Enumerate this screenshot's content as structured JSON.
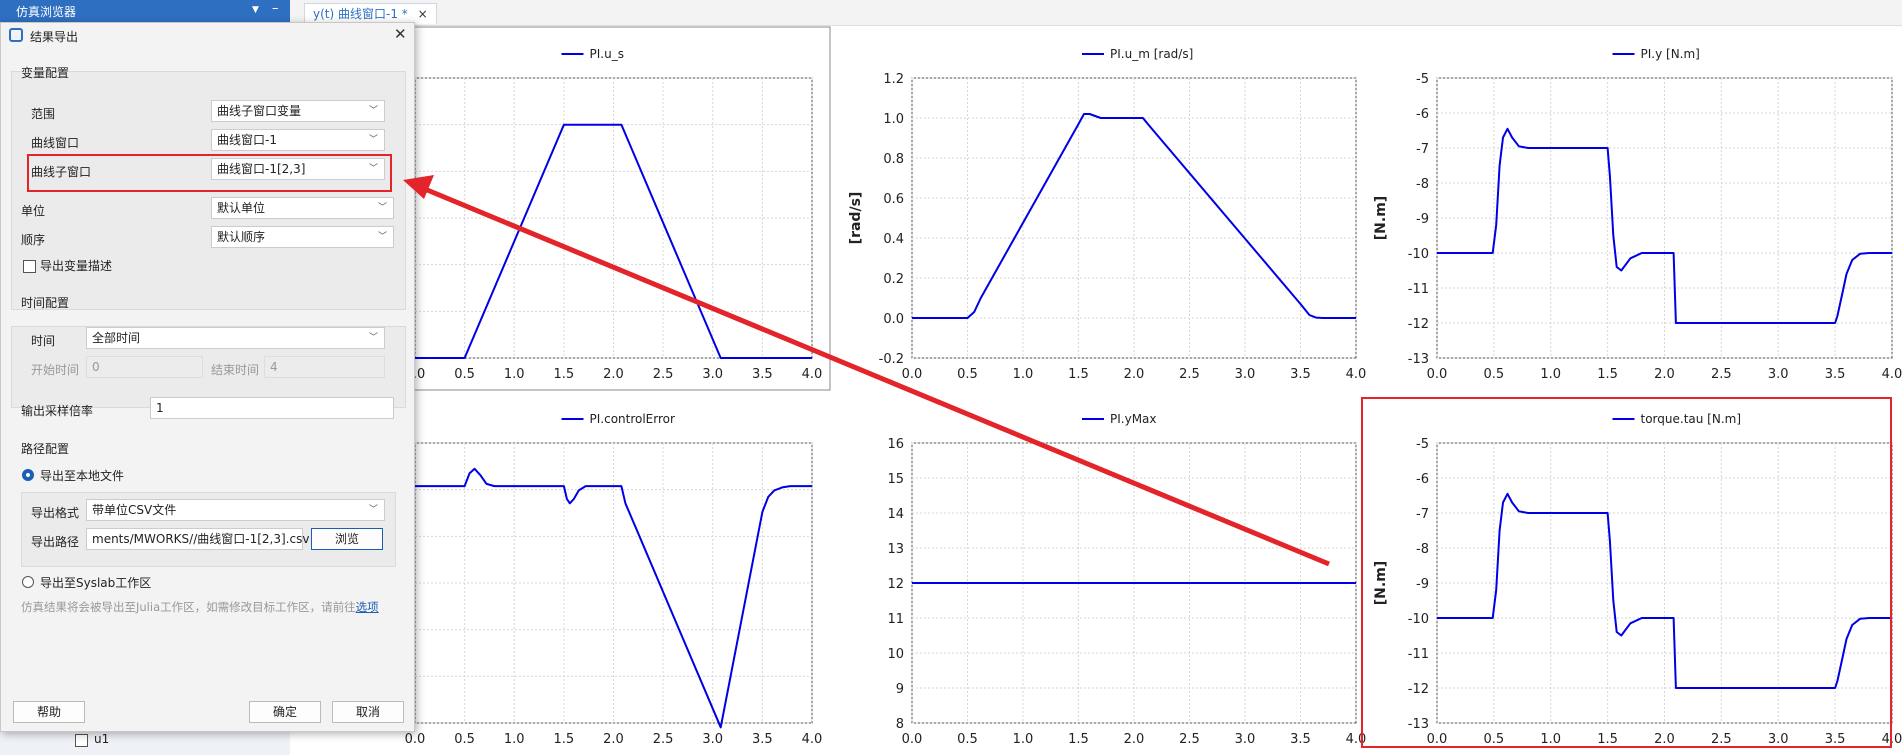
{
  "browser": {
    "title": "仿真浏览器",
    "var_row": "u1"
  },
  "tab": {
    "label": "y(t) 曲线窗口-1 *",
    "close": "×"
  },
  "dialog": {
    "title": "结果导出",
    "close": "✕",
    "var_group": "变量配置",
    "scope_label": "范围",
    "scope_value": "曲线子窗口变量",
    "window_label": "曲线窗口",
    "window_value": "曲线窗口-1",
    "subwin_label": "曲线子窗口",
    "subwin_value": "曲线窗口-1[2,3]",
    "unit_label": "单位",
    "unit_value": "默认单位",
    "order_label": "顺序",
    "order_value": "默认顺序",
    "export_desc": "导出变量描述",
    "time_group": "时间配置",
    "time_label": "时间",
    "time_value": "全部时间",
    "start_label": "开始时间",
    "start_value": "0",
    "end_label": "结束时间",
    "end_value": "4",
    "rate_label": "输出采样倍率",
    "rate_value": "1",
    "path_group": "路径配置",
    "local_label": "导出至本地文件",
    "format_label": "导出格式",
    "format_value": "带单位CSV文件",
    "path_label": "导出路径",
    "path_value": "ments/MWORKS//曲线窗口-1[2,3].csv",
    "browse": "浏览",
    "syslab_label": "导出至Syslab工作区",
    "note_text": "仿真结果将会被导出至Julia工作区，如需修改目标工作区，请前往",
    "note_link": "选项",
    "help": "帮助",
    "ok": "确定",
    "cancel": "取消"
  },
  "colors": {
    "series": "#0000e6",
    "highlight": "#e3242b",
    "accent": "#1a5fb4"
  },
  "chart_data": [
    {
      "type": "line",
      "title": "PI.u_s",
      "ylabel": "",
      "xlim": [
        0,
        4
      ],
      "xticks": [
        "0.0",
        "0.5",
        "1.0",
        "1.5",
        "2.0",
        "2.5",
        "3.0",
        "3.5",
        "4.0"
      ],
      "ylim": [
        0,
        1.2
      ],
      "yticks": [],
      "grid": true,
      "series": [
        {
          "name": "PI.u_s",
          "x": [
            0,
            0.5,
            1.5,
            2.08,
            3.08,
            4.0
          ],
          "y": [
            0,
            0,
            1.0,
            1.0,
            0,
            0
          ]
        }
      ]
    },
    {
      "type": "line",
      "title": "PI.u_m [rad/s]",
      "ylabel": "[rad/s]",
      "xlim": [
        0,
        4
      ],
      "xticks": [
        "0.0",
        "0.5",
        "1.0",
        "1.5",
        "2.0",
        "2.5",
        "3.0",
        "3.5",
        "4.0"
      ],
      "ylim": [
        -0.2,
        1.2
      ],
      "yticks": [
        "-0.2",
        "0.0",
        "0.2",
        "0.4",
        "0.6",
        "0.8",
        "1.0",
        "1.2"
      ],
      "grid": true,
      "series": [
        {
          "name": "PI.u_m [rad/s]",
          "x": [
            0,
            0.5,
            0.56,
            0.62,
            1.5,
            1.55,
            1.6,
            1.7,
            1.9,
            2.08,
            2.14,
            3.5,
            3.58,
            3.64,
            3.7,
            4.0
          ],
          "y": [
            0,
            0,
            0.03,
            0.1,
            0.97,
            1.02,
            1.02,
            1.0,
            1.0,
            1.0,
            0.96,
            0.07,
            0.015,
            0.002,
            0,
            0
          ]
        }
      ]
    },
    {
      "type": "line",
      "title": "PI.y [N.m]",
      "ylabel": "[N.m]",
      "xlim": [
        0,
        4
      ],
      "xticks": [
        "0.0",
        "0.5",
        "1.0",
        "1.5",
        "2.0",
        "2.5",
        "3.0",
        "3.5",
        "4.0"
      ],
      "ylim": [
        -13,
        -5
      ],
      "yticks": [
        "-5",
        "-6",
        "-7",
        "-8",
        "-9",
        "-10",
        "-11",
        "-12",
        "-13"
      ],
      "grid": true,
      "series": [
        {
          "name": "PI.y [N.m]",
          "x": [
            0,
            0.49,
            0.52,
            0.55,
            0.58,
            0.62,
            0.66,
            0.72,
            0.8,
            1.0,
            1.5,
            1.52,
            1.55,
            1.58,
            1.62,
            1.7,
            1.8,
            2.08,
            2.1,
            2.3,
            3.5,
            3.52,
            3.56,
            3.6,
            3.65,
            3.72,
            3.8,
            4.0
          ],
          "y": [
            -10,
            -10,
            -9.2,
            -7.5,
            -6.7,
            -6.45,
            -6.7,
            -6.95,
            -7,
            -7,
            -7,
            -7.8,
            -9.5,
            -10.4,
            -10.5,
            -10.15,
            -10,
            -10,
            -12,
            -12,
            -12,
            -11.8,
            -11.2,
            -10.6,
            -10.2,
            -10.02,
            -10,
            -10
          ]
        }
      ]
    },
    {
      "type": "line",
      "title": "PI.controlError",
      "ylabel": "",
      "xlim": [
        0,
        4
      ],
      "xticks": [
        "0.0",
        "0.5",
        "1.0",
        "1.5",
        "2.0",
        "2.5",
        "3.0",
        "3.5",
        "4.0"
      ],
      "ylim": [
        -0.55,
        0.1
      ],
      "yticks": [],
      "grid": true,
      "series": [
        {
          "name": "PI.controlError",
          "x": [
            0,
            0.5,
            0.55,
            0.6,
            0.66,
            0.72,
            0.8,
            1.0,
            1.5,
            1.53,
            1.56,
            1.6,
            1.65,
            1.72,
            1.8,
            2.08,
            2.12,
            3.08,
            3.5,
            3.56,
            3.62,
            3.7,
            3.78,
            3.85,
            4.0
          ],
          "y": [
            0,
            0,
            0.03,
            0.04,
            0.025,
            0.005,
            0,
            0,
            0,
            -0.03,
            -0.04,
            -0.03,
            -0.01,
            0,
            0,
            0,
            -0.04,
            -0.56,
            -0.06,
            -0.025,
            -0.01,
            -0.003,
            0,
            0,
            0
          ]
        }
      ]
    },
    {
      "type": "line",
      "title": "PI.yMax",
      "ylabel": "",
      "xlim": [
        0,
        4
      ],
      "xticks": [
        "0.0",
        "0.5",
        "1.0",
        "1.5",
        "2.0",
        "2.5",
        "3.0",
        "3.5",
        "4.0"
      ],
      "ylim": [
        8,
        16
      ],
      "yticks": [
        "8",
        "9",
        "10",
        "11",
        "12",
        "13",
        "14",
        "15",
        "16"
      ],
      "grid": true,
      "series": [
        {
          "name": "PI.yMax",
          "x": [
            0,
            4.0
          ],
          "y": [
            12,
            12
          ]
        }
      ]
    },
    {
      "type": "line",
      "title": "torque.tau [N.m]",
      "ylabel": "[N.m]",
      "xlim": [
        0,
        4
      ],
      "xticks": [
        "0.0",
        "0.5",
        "1.0",
        "1.5",
        "2.0",
        "2.5",
        "3.0",
        "3.5",
        "4.0"
      ],
      "ylim": [
        -13,
        -5
      ],
      "yticks": [
        "-5",
        "-6",
        "-7",
        "-8",
        "-9",
        "-10",
        "-11",
        "-12",
        "-13"
      ],
      "grid": true,
      "series": [
        {
          "name": "torque.tau [N.m]",
          "x": [
            0,
            0.49,
            0.52,
            0.55,
            0.58,
            0.62,
            0.66,
            0.72,
            0.8,
            1.0,
            1.5,
            1.52,
            1.55,
            1.58,
            1.62,
            1.7,
            1.8,
            2.08,
            2.1,
            2.3,
            3.5,
            3.52,
            3.56,
            3.6,
            3.65,
            3.72,
            3.8,
            4.0
          ],
          "y": [
            -10,
            -10,
            -9.2,
            -7.5,
            -6.7,
            -6.45,
            -6.7,
            -6.95,
            -7,
            -7,
            -7,
            -7.8,
            -9.5,
            -10.4,
            -10.5,
            -10.15,
            -10,
            -10,
            -12,
            -12,
            -12,
            -11.8,
            -11.2,
            -10.6,
            -10.2,
            -10.02,
            -10,
            -10
          ]
        }
      ]
    }
  ]
}
